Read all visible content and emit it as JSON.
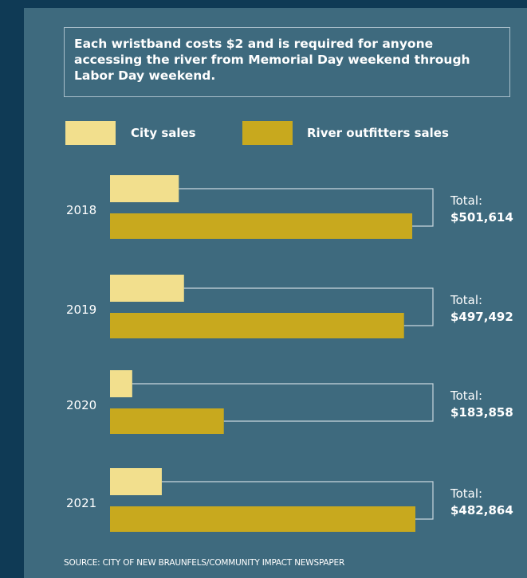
{
  "intro_text": "Each wristband costs $2 and is required for anyone accessing the river from Memorial Day weekend through Labor Day weekend.",
  "legend": {
    "city_label": "City sales",
    "outfitters_label": "River outfitters sales"
  },
  "colors": {
    "background": "#0f3a55",
    "panel": "#3e6a7e",
    "city": "#f2df8d",
    "outfitters": "#c8a91e",
    "bracket": "#c9d7de"
  },
  "source": "SOURCE: CITY OF NEW BRAUNFELS/COMMUNITY IMPACT NEWSPAPER",
  "chart_data": {
    "type": "bar",
    "orientation": "horizontal",
    "categories": [
      "2018",
      "2019",
      "2020",
      "2021"
    ],
    "series": [
      {
        "name": "City sales",
        "values": [
          93000,
          100000,
          30000,
          70000
        ]
      },
      {
        "name": "River outfitters sales",
        "values": [
          408614,
          397492,
          153858,
          412864
        ]
      }
    ],
    "totals": [
      {
        "label": "Total:",
        "value": "$501,614"
      },
      {
        "label": "Total:",
        "value": "$497,492"
      },
      {
        "label": "Total:",
        "value": "$183,858"
      },
      {
        "label": "Total:",
        "value": "$482,864"
      }
    ],
    "xlim": [
      0,
      412864
    ],
    "grid": false,
    "legend_position": "top"
  }
}
